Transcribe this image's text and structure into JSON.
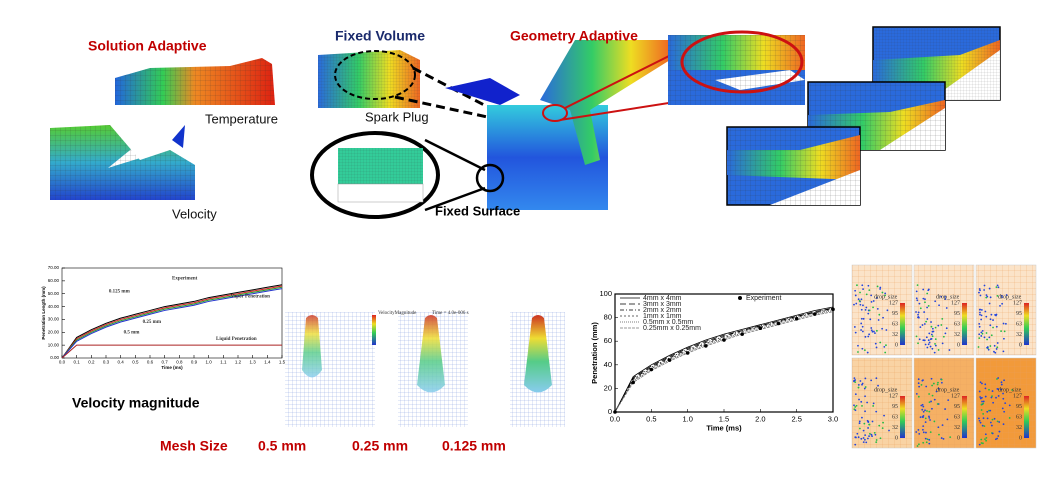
{
  "top": {
    "solution_adaptive": "Solution Adaptive",
    "temperature": "Temperature",
    "velocity": "Velocity",
    "fixed_volume": "Fixed Volume",
    "spark_plug": "Spark Plug",
    "geometry_adaptive": "Geometry Adaptive",
    "fixed_surface": "Fixed Surface"
  },
  "bottom": {
    "velocity_magnitude": "Velocity magnitude",
    "mesh_size_label": "Mesh Size",
    "mesh_sizes": [
      "0.5 mm",
      "0.25 mm",
      "0.125 mm"
    ],
    "spray_legend_title": "VelocityMagnitude",
    "spray_time": "Time = 4.0e-006 s"
  },
  "left_plot": {
    "x_label": "Time (ms)",
    "y_label": "Penetration Length (mm)",
    "xlim": [
      0,
      1.5
    ],
    "ylim": [
      0,
      70
    ],
    "xticks": [
      {
        "value": 0,
        "label": "0.0"
      },
      0.1,
      0.2,
      0.3,
      0.4,
      0.5,
      0.6,
      0.7,
      0.8,
      0.9,
      {
        "value": 1,
        "label": "1.0"
      },
      1.1,
      1.2,
      1.3,
      1.4,
      1.5
    ],
    "yticks": [
      {
        "value": 0,
        "label": "0.00"
      },
      {
        "value": 10,
        "label": "10.00"
      },
      {
        "value": 20,
        "label": "20.00"
      },
      {
        "value": 30,
        "label": "30.00"
      },
      {
        "value": 40,
        "label": "40.00"
      },
      {
        "value": 50,
        "label": "50.00"
      },
      {
        "value": 60,
        "label": "60.00"
      },
      {
        "value": 70,
        "label": "70.00"
      }
    ],
    "x": [
      0,
      0.1,
      0.2,
      0.3,
      0.4,
      0.5,
      0.6,
      0.7,
      0.8,
      0.9,
      1.0,
      1.1,
      1.2,
      1.3,
      1.4,
      1.5
    ],
    "series": [
      {
        "name": "Experiment",
        "color": "#000000",
        "values": [
          0,
          16,
          22,
          27,
          31,
          34,
          37,
          40,
          42,
          44,
          47,
          49,
          51,
          53,
          55,
          57
        ]
      },
      {
        "name": "0.125 mm",
        "color": "#d42020",
        "values": [
          0,
          15,
          21,
          26,
          30,
          33,
          36,
          39,
          41,
          43,
          46,
          48,
          50,
          52,
          54,
          56
        ]
      },
      {
        "name": "0.25 mm",
        "color": "#2a9a2a",
        "values": [
          0,
          14,
          20,
          25,
          29,
          32,
          35,
          38,
          40,
          42,
          45,
          47,
          49,
          51,
          53,
          55
        ]
      },
      {
        "name": "0.5 mm",
        "color": "#2233cc",
        "values": [
          0,
          13,
          19,
          24,
          28,
          31,
          34,
          37,
          39,
          41,
          44,
          46,
          48,
          50,
          52,
          54
        ]
      },
      {
        "name": "Liquid Penetration",
        "color": "#aa2222",
        "values": [
          0,
          10,
          10,
          10,
          10,
          10,
          10,
          10,
          10,
          10,
          10,
          10,
          10,
          10,
          10,
          10
        ]
      }
    ],
    "annotation": "Vapor Penetration"
  },
  "right_plot": {
    "x_label": "Time (ms)",
    "y_label": "Penetration (mm)",
    "xlim": [
      0,
      3
    ],
    "ylim": [
      0,
      100
    ],
    "xticks": [
      {
        "value": 0,
        "label": "0.0"
      },
      0.5,
      {
        "value": 1,
        "label": "1.0"
      },
      1.5,
      {
        "value": 2,
        "label": "2.0"
      },
      2.5,
      {
        "value": 3,
        "label": "3.0"
      }
    ],
    "yticks": [
      0,
      20,
      40,
      60,
      80,
      100
    ],
    "x": [
      0,
      0.25,
      0.5,
      0.75,
      1.0,
      1.25,
      1.5,
      1.75,
      2.0,
      2.25,
      2.5,
      2.75,
      3.0
    ],
    "series": [
      {
        "name": "4mm x 4mm",
        "color": "#000000",
        "values": [
          0,
          30,
          40,
          48,
          55,
          61,
          66,
          70,
          74,
          78,
          82,
          86,
          89
        ]
      },
      {
        "name": "3mm x 3mm",
        "color": "#000000",
        "values": [
          0,
          29,
          39,
          47,
          54,
          60,
          65,
          69,
          73,
          77,
          81,
          85,
          88
        ]
      },
      {
        "name": "2mm x 2mm",
        "color": "#000000",
        "values": [
          0,
          28,
          38,
          46,
          53,
          59,
          64,
          69,
          73,
          77,
          81,
          84,
          88
        ]
      },
      {
        "name": "1mm x 1mm",
        "color": "#333333",
        "values": [
          0,
          27,
          37,
          45,
          52,
          58,
          63,
          68,
          72,
          76,
          80,
          84,
          87
        ]
      },
      {
        "name": "0.5mm x 0.5mm",
        "color": "#555555",
        "values": [
          0,
          26,
          36,
          44,
          51,
          57,
          62,
          67,
          71,
          75,
          79,
          83,
          86
        ]
      },
      {
        "name": "0.25mm x 0.25mm",
        "color": "#777777",
        "values": [
          0,
          25,
          35,
          43,
          50,
          56,
          61,
          66,
          70,
          74,
          78,
          82,
          85
        ]
      },
      {
        "name": "Experiment",
        "color": "#000000",
        "values": [
          0,
          25,
          36,
          44,
          50,
          56,
          61,
          66,
          71,
          75,
          79,
          83,
          87
        ]
      }
    ]
  },
  "droplet_panels": [
    {
      "label": "drop_size",
      "scale": [
        127,
        95,
        63,
        32,
        0
      ]
    },
    {
      "label": "drop_size",
      "scale": [
        127,
        95,
        63,
        32,
        0
      ]
    },
    {
      "label": "drop_size",
      "scale": [
        127,
        95,
        63,
        32,
        0
      ]
    },
    {
      "label": "drop_size",
      "scale": [
        127,
        95,
        63,
        32,
        0
      ]
    },
    {
      "label": "drop_size",
      "scale": [
        127,
        95,
        63,
        32,
        0
      ]
    },
    {
      "label": "drop_size",
      "scale": [
        127,
        95,
        63,
        32,
        0
      ]
    }
  ]
}
